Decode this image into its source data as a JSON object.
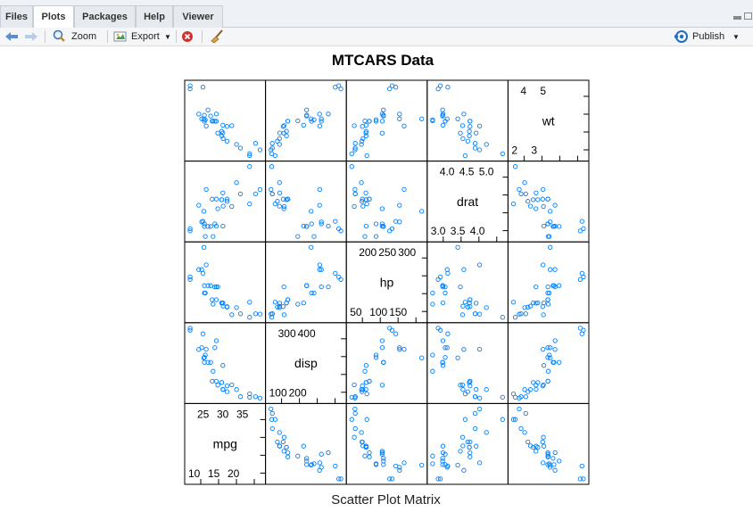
{
  "tabs": [
    {
      "label": "Files",
      "active": false
    },
    {
      "label": "Plots",
      "active": true
    },
    {
      "label": "Packages",
      "active": false
    },
    {
      "label": "Help",
      "active": false
    },
    {
      "label": "Viewer",
      "active": false
    }
  ],
  "toolbar": {
    "back_icon": "back-arrow-icon",
    "forward_icon": "forward-arrow-icon",
    "zoom_label": "Zoom",
    "export_label": "Export",
    "remove_icon": "remove-plot-icon",
    "clear_icon": "broom-icon",
    "publish_label": "Publish"
  },
  "colors": {
    "points": "#0080ff",
    "accent": "#1e6fc1",
    "remove": "#d32f2f"
  },
  "plot": {
    "title": "MTCARS Data",
    "subtitle": "Scatter Plot Matrix"
  },
  "chart_data": {
    "type": "scatter",
    "title": "MTCARS Data",
    "xlabel": "Scatter Plot Matrix",
    "variables_top_to_bottom": [
      "wt",
      "drat",
      "hp",
      "disp",
      "mpg"
    ],
    "variables": [
      {
        "name": "mpg",
        "ticks_low": [
          "10",
          "15",
          "20"
        ],
        "ticks_high": [
          "25",
          "30",
          "35"
        ],
        "range": [
          10.4,
          33.9
        ]
      },
      {
        "name": "disp",
        "ticks_low": [
          "100",
          "200"
        ],
        "ticks_high": [
          "300",
          "400"
        ],
        "range": [
          71.1,
          472
        ]
      },
      {
        "name": "hp",
        "ticks_low": [
          "50",
          "100",
          "150"
        ],
        "ticks_high": [
          "200",
          "250",
          "300"
        ],
        "range": [
          52,
          335
        ]
      },
      {
        "name": "drat",
        "ticks_low": [
          "3.0",
          "3.5",
          "4.0"
        ],
        "ticks_high": [
          "4.0",
          "4.5",
          "5.0"
        ],
        "range": [
          2.76,
          4.93
        ]
      },
      {
        "name": "wt",
        "ticks_low": [
          "2",
          "3"
        ],
        "ticks_high": [
          "4",
          "5"
        ],
        "range": [
          1.513,
          5.424
        ]
      }
    ],
    "data": {
      "mpg": [
        21.0,
        21.0,
        22.8,
        21.4,
        18.7,
        18.1,
        14.3,
        24.4,
        22.8,
        19.2,
        17.8,
        16.4,
        17.3,
        15.2,
        10.4,
        10.4,
        14.7,
        32.4,
        30.4,
        33.9,
        21.5,
        15.5,
        15.2,
        13.3,
        19.2,
        27.3,
        26.0,
        30.4,
        15.8,
        19.7,
        15.0,
        21.4
      ],
      "disp": [
        160,
        160,
        108,
        258,
        360,
        225,
        360,
        146.7,
        140.8,
        167.6,
        167.6,
        275.8,
        275.8,
        275.8,
        472,
        460,
        440,
        78.7,
        75.7,
        71.1,
        120.1,
        318,
        304,
        350,
        400,
        79,
        120.3,
        95.1,
        351,
        145,
        301,
        121
      ],
      "hp": [
        110,
        110,
        93,
        110,
        175,
        105,
        245,
        62,
        95,
        123,
        123,
        180,
        180,
        180,
        205,
        215,
        230,
        66,
        52,
        65,
        97,
        150,
        150,
        245,
        175,
        66,
        91,
        113,
        264,
        175,
        335,
        109
      ],
      "drat": [
        3.9,
        3.9,
        3.85,
        3.08,
        3.15,
        2.76,
        3.21,
        3.69,
        3.92,
        3.92,
        3.92,
        3.07,
        3.07,
        3.07,
        2.93,
        3.0,
        3.23,
        4.08,
        4.93,
        4.22,
        3.7,
        2.76,
        3.15,
        3.73,
        3.08,
        4.08,
        4.43,
        3.77,
        4.22,
        3.62,
        3.54,
        4.11
      ],
      "wt": [
        2.62,
        2.875,
        2.32,
        3.215,
        3.44,
        3.46,
        3.57,
        3.19,
        3.15,
        3.44,
        3.44,
        4.07,
        3.73,
        3.78,
        5.25,
        5.424,
        5.345,
        2.2,
        1.615,
        1.835,
        2.465,
        3.52,
        3.435,
        3.84,
        3.845,
        1.935,
        2.14,
        1.513,
        3.17,
        2.77,
        3.57,
        2.78
      ]
    },
    "grid": false,
    "legend": "none"
  }
}
